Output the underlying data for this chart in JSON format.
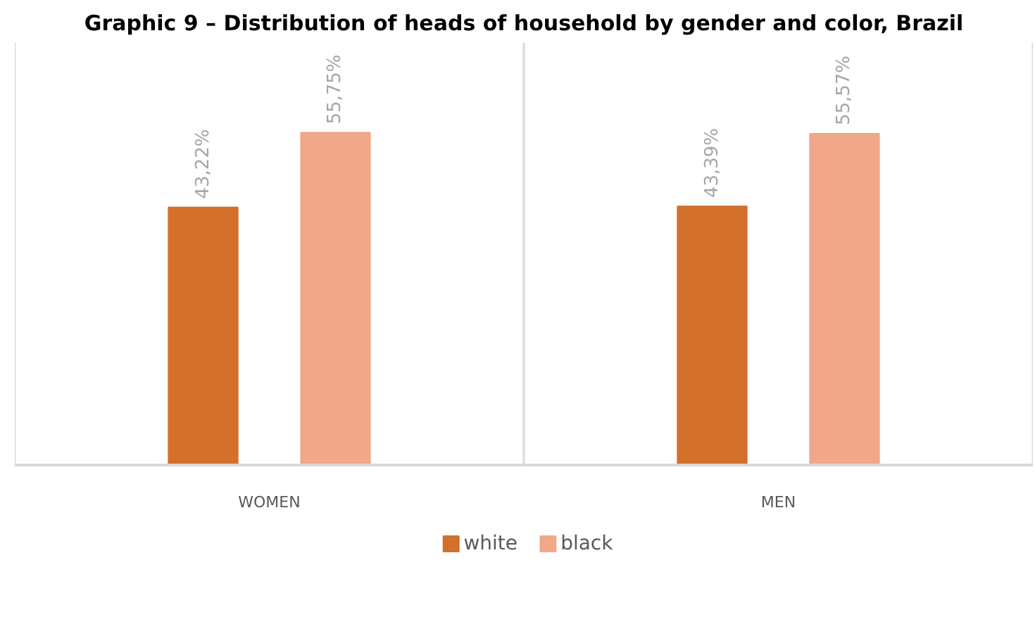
{
  "chart_data": {
    "type": "bar",
    "title": "Graphic 9 – Distribution of heads of household by gender and color, Brazil",
    "categories": [
      "WOMEN",
      "MEN"
    ],
    "series": [
      {
        "name": "white",
        "color": "#d2702c",
        "values": [
          43.22,
          43.39
        ],
        "value_labels": [
          "43,22%",
          "43,39%"
        ]
      },
      {
        "name": "black",
        "color": "#f1a78a",
        "values": [
          55.75,
          55.57
        ],
        "value_labels": [
          "55,75%",
          "55,57%"
        ]
      }
    ],
    "legend": "bottom"
  }
}
